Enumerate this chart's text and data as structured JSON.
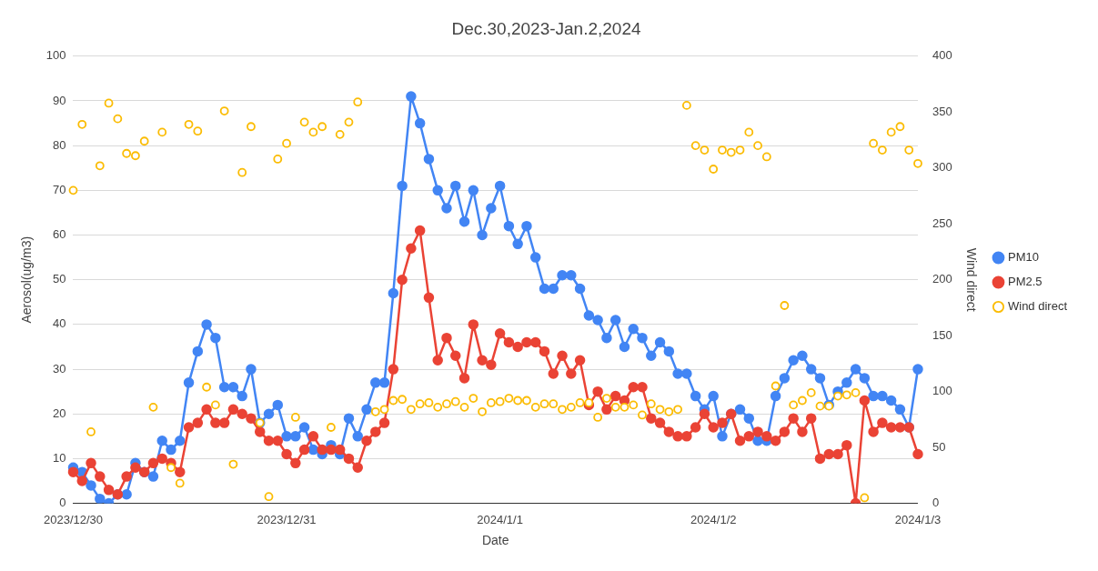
{
  "chart_data": {
    "type": "line",
    "title": "Dec.30,2023-Jan.2,2024",
    "xlabel": "Date",
    "ylabel": "Aerosol(ug/m3)",
    "y2label": "Wind direct",
    "categories": [
      "2023/12/30",
      null,
      null,
      null,
      null,
      null,
      null,
      null,
      null,
      null,
      null,
      null,
      null,
      null,
      null,
      null,
      null,
      null,
      null,
      null,
      null,
      null,
      null,
      null,
      "2023/12/31",
      null,
      null,
      null,
      null,
      null,
      null,
      null,
      null,
      null,
      null,
      null,
      null,
      null,
      null,
      null,
      null,
      null,
      null,
      null,
      null,
      null,
      null,
      null,
      "2024/1/1",
      null,
      null,
      null,
      null,
      null,
      null,
      null,
      null,
      null,
      null,
      null,
      null,
      null,
      null,
      null,
      null,
      null,
      null,
      null,
      null,
      null,
      null,
      null,
      "2024/1/2",
      null,
      null,
      null,
      null,
      null,
      null,
      null,
      null,
      null,
      null,
      null,
      null,
      null,
      null,
      null,
      null,
      null,
      null,
      null,
      null,
      null,
      null,
      "2024/1/3"
    ],
    "series": [
      {
        "name": "PM10",
        "color": "#4285f4",
        "values": [
          8,
          7,
          4,
          1,
          0,
          2,
          2,
          9,
          7,
          6,
          14,
          12,
          14,
          27,
          34,
          40,
          37,
          26,
          26,
          24,
          30,
          18,
          20,
          22,
          15,
          15,
          17,
          12,
          11,
          13,
          11,
          19,
          15,
          21,
          27,
          27,
          47,
          71,
          91,
          85,
          77,
          70,
          66,
          71,
          63,
          70,
          60,
          66,
          71,
          62,
          58,
          62,
          55,
          48,
          48,
          51,
          51,
          48,
          42,
          41,
          37,
          41,
          35,
          39,
          37,
          33,
          36,
          34,
          29,
          29,
          24,
          21,
          24,
          15,
          20,
          21,
          19,
          14,
          14,
          24,
          28,
          32,
          33,
          30,
          28,
          22,
          25,
          27,
          30,
          28,
          24,
          24,
          23,
          21,
          17,
          30
        ]
      },
      {
        "name": "PM2.5",
        "color": "#ea4335",
        "values": [
          7,
          5,
          9,
          6,
          3,
          2,
          6,
          8,
          7,
          9,
          10,
          9,
          7,
          17,
          18,
          21,
          18,
          18,
          21,
          20,
          19,
          16,
          14,
          14,
          11,
          9,
          12,
          15,
          12,
          12,
          12,
          10,
          8,
          14,
          16,
          18,
          30,
          50,
          57,
          61,
          46,
          32,
          37,
          33,
          28,
          40,
          32,
          31,
          38,
          36,
          35,
          36,
          36,
          34,
          29,
          33,
          29,
          32,
          22,
          25,
          21,
          24,
          23,
          26,
          26,
          19,
          18,
          16,
          15,
          15,
          17,
          20,
          17,
          18,
          20,
          14,
          15,
          16,
          15,
          14,
          16,
          19,
          16,
          19,
          10,
          11,
          11,
          13,
          0,
          23,
          16,
          18,
          17,
          17,
          17,
          11
        ]
      },
      {
        "name": "Wind direct",
        "type": "scatter",
        "axis": "y2",
        "color": "#fbbc04",
        "values": [
          280,
          339,
          64,
          302,
          358,
          344,
          313,
          311,
          324,
          86,
          332,
          32,
          18,
          339,
          333,
          104,
          88,
          351,
          35,
          296,
          337,
          72,
          6,
          308,
          322,
          77,
          341,
          332,
          337,
          68,
          330,
          341,
          359,
          null,
          82,
          84,
          92,
          93,
          84,
          89,
          90,
          86,
          89,
          91,
          86,
          94,
          82,
          90,
          91,
          94,
          92,
          92,
          86,
          89,
          89,
          84,
          86,
          90,
          90,
          77,
          94,
          86,
          86,
          88,
          79,
          89,
          84,
          82,
          84,
          356,
          320,
          316,
          299,
          316,
          314,
          316,
          332,
          320,
          310,
          105,
          177,
          88,
          92,
          99,
          87,
          87,
          96,
          97,
          99,
          5,
          322,
          316,
          332,
          337,
          316,
          304
        ]
      }
    ],
    "ylim": [
      0,
      100
    ],
    "yticks": [
      0,
      10,
      20,
      30,
      40,
      50,
      60,
      70,
      80,
      90,
      100
    ],
    "y2lim": [
      0,
      400
    ],
    "y2ticks": [
      0,
      50,
      100,
      150,
      200,
      250,
      300,
      350,
      400
    ],
    "grid": "y",
    "legend": "right",
    "marker": "circle",
    "line_style": "solid"
  }
}
